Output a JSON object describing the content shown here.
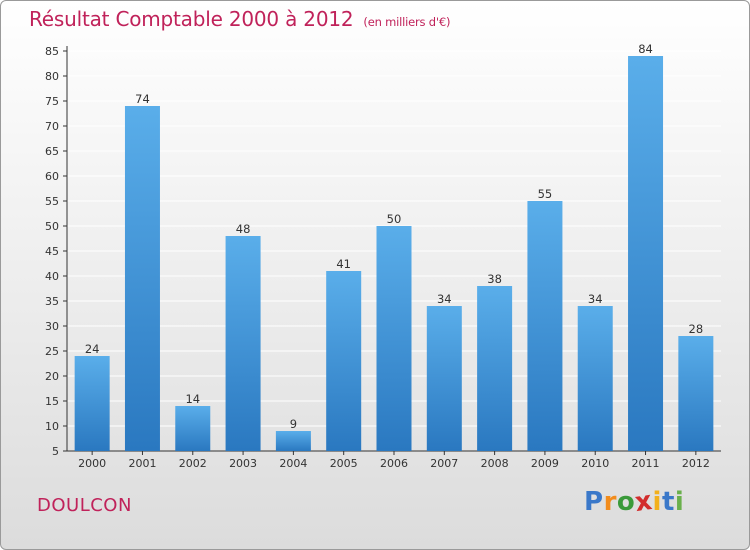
{
  "header": {
    "title": "Résultat Comptable 2000 à 2012",
    "subtitle": "(en milliers d'€)"
  },
  "commune": "DOULCON",
  "logo": {
    "text": "Proxiti",
    "letters": [
      "P",
      "r",
      "o",
      "x",
      "i",
      "t",
      "i"
    ],
    "colors": [
      "#3a78c9",
      "#f28c1c",
      "#3a9a3a",
      "#d22d2d",
      "#f2b01c",
      "#3a78c9",
      "#6ab04c"
    ]
  },
  "colors": {
    "bar_top": "#5aaeea",
    "bar_bottom": "#2a78c0",
    "axis": "#333333",
    "grid": "#ffffff",
    "title": "#c0225a"
  },
  "chart_data": {
    "type": "bar",
    "title": "Résultat Comptable 2000 à 2012",
    "categories": [
      "2000",
      "2001",
      "2002",
      "2003",
      "2004",
      "2005",
      "2006",
      "2007",
      "2008",
      "2009",
      "2010",
      "2011",
      "2012"
    ],
    "values": [
      24,
      74,
      14,
      48,
      9,
      41,
      50,
      34,
      38,
      55,
      34,
      84,
      28
    ],
    "yticks": [
      5,
      10,
      15,
      20,
      25,
      30,
      35,
      40,
      45,
      50,
      55,
      60,
      65,
      70,
      75,
      80,
      85
    ],
    "ylim": [
      5,
      85
    ],
    "grid": true,
    "legend": "none"
  }
}
